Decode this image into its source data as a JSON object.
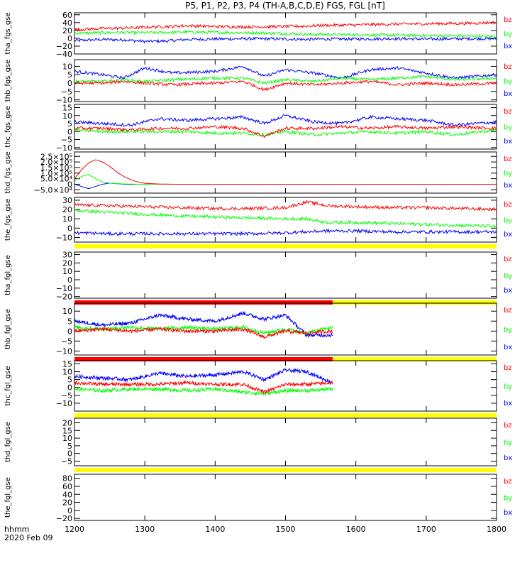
{
  "title": "P5, P1, P2, P3, P4 (TH-A,B,C,D,E) FGS, FGL [nT]",
  "footer": {
    "axis_units": "hhmm",
    "date": "2020 Feb 09"
  },
  "colors": {
    "bx": "#0000ff",
    "by": "#00ff00",
    "bz": "#ff0000",
    "bar_red": "#ff0000",
    "bar_yellow": "#ffff00"
  },
  "chart_data": {
    "type": "line",
    "x_axis": {
      "xlim": [
        1200,
        1800
      ],
      "tick_labels": [
        "1200",
        "1300",
        "1400",
        "1500",
        "1600",
        "1700",
        "1800"
      ]
    },
    "panels": [
      {
        "id": "tha_fgs",
        "ylabel": "tha_fgs_gse",
        "ylim": [
          -40,
          65
        ],
        "y_ticks": [
          -40,
          -20,
          0,
          20,
          40,
          60
        ],
        "y_tick_labels": [
          "−40",
          "−20",
          "0",
          "20",
          "40",
          "60"
        ],
        "data_x_end": 1800,
        "bars": [],
        "series": [
          {
            "name": "bz",
            "x": [
              1200,
              1240,
              1270,
              1300,
              1330,
              1360,
              1400,
              1450,
              1500,
              1530,
              1550,
              1600,
              1650,
              1700,
              1750,
              1800
            ],
            "y": [
              22,
              25,
              26,
              28,
              30,
              32,
              30,
              29,
              30,
              31,
              33,
              34,
              36,
              37,
              38,
              40
            ]
          },
          {
            "name": "by",
            "x": [
              1200,
              1240,
              1270,
              1300,
              1330,
              1360,
              1400,
              1450,
              1500,
              1530,
              1550,
              1600,
              1650,
              1700,
              1750,
              1800
            ],
            "y": [
              13,
              14,
              15,
              14,
              15,
              16,
              15,
              14,
              12,
              10,
              10,
              9,
              8,
              7,
              6,
              5
            ]
          },
          {
            "name": "bx",
            "x": [
              1200,
              1240,
              1270,
              1300,
              1330,
              1360,
              1400,
              1450,
              1500,
              1530,
              1550,
              1600,
              1650,
              1700,
              1750,
              1800
            ],
            "y": [
              -6,
              -3,
              -4,
              -8,
              -7,
              -3,
              -2,
              -1,
              -2,
              -3,
              -2,
              -2,
              -1,
              -2,
              -1,
              -1
            ]
          }
        ]
      },
      {
        "id": "thb_fgs",
        "ylabel": "thb_fgs_gse",
        "ylim": [
          -11,
          14
        ],
        "y_ticks": [
          -10,
          -5,
          0,
          5,
          10
        ],
        "y_tick_labels": [
          "−10",
          "−5",
          "0",
          "5",
          "10"
        ],
        "data_x_end": 1800,
        "bars": [],
        "series": [
          {
            "name": "bz",
            "x": [
              1200,
              1240,
              1270,
              1300,
              1340,
              1400,
              1440,
              1470,
              1500,
              1540,
              1580,
              1620,
              1660,
              1700,
              1740,
              1800
            ],
            "y": [
              0,
              0,
              1,
              0,
              -1,
              0,
              1,
              -4,
              0,
              -1,
              0,
              1,
              -1,
              0,
              -1,
              0
            ]
          },
          {
            "name": "by",
            "x": [
              1200,
              1240,
              1270,
              1300,
              1340,
              1400,
              1440,
              1470,
              1500,
              1540,
              1580,
              1620,
              1660,
              1700,
              1740,
              1800
            ],
            "y": [
              1,
              1,
              2,
              1,
              2,
              3,
              3,
              0,
              2,
              1,
              3,
              2,
              3,
              4,
              2,
              3
            ]
          },
          {
            "name": "bx",
            "x": [
              1200,
              1240,
              1270,
              1300,
              1340,
              1400,
              1440,
              1470,
              1500,
              1540,
              1580,
              1620,
              1660,
              1700,
              1740,
              1800
            ],
            "y": [
              7,
              5,
              3,
              9,
              6,
              7,
              10,
              4,
              8,
              6,
              3,
              8,
              9,
              6,
              3,
              5
            ]
          }
        ]
      },
      {
        "id": "thc_fgs",
        "ylabel": "thc_fgs_gse",
        "ylim": [
          -11,
          17
        ],
        "y_ticks": [
          -10,
          -5,
          0,
          5,
          10,
          15
        ],
        "y_tick_labels": [
          "−10",
          "−5",
          "0",
          "5",
          "10",
          "15"
        ],
        "data_x_end": 1800,
        "bars": [],
        "series": [
          {
            "name": "bz",
            "x": [
              1200,
              1240,
              1280,
              1320,
              1360,
              1400,
              1440,
              1470,
              1500,
              1540,
              1580,
              1620,
              1660,
              1700,
              1740,
              1800
            ],
            "y": [
              2,
              2,
              1,
              2,
              2,
              3,
              2,
              -3,
              2,
              2,
              3,
              2,
              3,
              2,
              3,
              2
            ]
          },
          {
            "name": "by",
            "x": [
              1200,
              1240,
              1280,
              1320,
              1360,
              1400,
              1440,
              1470,
              1500,
              1540,
              1580,
              1620,
              1660,
              1700,
              1740,
              1800
            ],
            "y": [
              1,
              0,
              0,
              0,
              0,
              -1,
              -1,
              -2,
              0,
              -2,
              -1,
              0,
              -1,
              0,
              -2,
              1
            ]
          },
          {
            "name": "bx",
            "x": [
              1200,
              1240,
              1280,
              1320,
              1360,
              1400,
              1440,
              1470,
              1500,
              1540,
              1580,
              1620,
              1660,
              1700,
              1740,
              1800
            ],
            "y": [
              6,
              5,
              4,
              8,
              7,
              8,
              9,
              5,
              10,
              6,
              5,
              9,
              8,
              7,
              4,
              6
            ]
          }
        ]
      },
      {
        "id": "thd_fgs",
        "ylabel": "thd_fgs_gse",
        "ylim": [
          -80000,
          290000
        ],
        "y_ticks": [
          -50000,
          0,
          50000,
          100000,
          150000,
          200000,
          250000
        ],
        "y_tick_labels": [
          "−5.0×10⁴",
          "0",
          "5.0×10⁴",
          "1.0×10⁵",
          "1.5×10⁵",
          "2.0×10⁵",
          "2.5×10⁵"
        ],
        "data_x_end": 1800,
        "bars": [],
        "series": [
          {
            "name": "bz",
            "x": [
              1200,
              1210,
              1220,
              1230,
              1240,
              1250,
              1260,
              1270,
              1280,
              1290,
              1300,
              1320,
              1340,
              1800
            ],
            "y": [
              50000,
              130000,
              190000,
              220000,
              200000,
              160000,
              110000,
              70000,
              40000,
              20000,
              8000,
              2000,
              0,
              0
            ]
          },
          {
            "name": "by",
            "x": [
              1200,
              1210,
              1220,
              1230,
              1240,
              1250,
              1260,
              1270,
              1280,
              1290,
              1300,
              1320,
              1340,
              1800
            ],
            "y": [
              30000,
              70000,
              90000,
              50000,
              20000,
              10000,
              5000,
              3000,
              1000,
              0,
              0,
              0,
              0,
              0
            ]
          },
          {
            "name": "bx",
            "x": [
              1200,
              1210,
              1220,
              1230,
              1240,
              1250,
              1260,
              1270,
              1280,
              1290,
              1300,
              1320,
              1340,
              1800
            ],
            "y": [
              0,
              -20000,
              -40000,
              -20000,
              0,
              10000,
              5000,
              0,
              -3000,
              0,
              0,
              0,
              0,
              0
            ]
          }
        ]
      },
      {
        "id": "the_fgs",
        "ylabel": "the_fgs_gse",
        "ylim": [
          -15,
          33
        ],
        "y_ticks": [
          -10,
          0,
          10,
          20,
          30
        ],
        "y_tick_labels": [
          "−10",
          "0",
          "10",
          "20",
          "30"
        ],
        "data_x_end": 1800,
        "bars": [
          {
            "x0": 1200,
            "x1": 1800,
            "color": "bar_yellow"
          }
        ],
        "series": [
          {
            "name": "bz",
            "x": [
              1200,
              1250,
              1300,
              1350,
              1400,
              1450,
              1500,
              1530,
              1560,
              1600,
              1650,
              1700,
              1750,
              1800
            ],
            "y": [
              25,
              24,
              23,
              22,
              21,
              21,
              22,
              28,
              24,
              23,
              22,
              22,
              21,
              20
            ]
          },
          {
            "name": "by",
            "x": [
              1200,
              1250,
              1300,
              1350,
              1400,
              1450,
              1500,
              1530,
              1560,
              1600,
              1650,
              1700,
              1750,
              1800
            ],
            "y": [
              19,
              17,
              15,
              13,
              12,
              11,
              10,
              10,
              6,
              6,
              5,
              4,
              3,
              2
            ]
          },
          {
            "name": "bx",
            "x": [
              1200,
              1250,
              1300,
              1350,
              1400,
              1450,
              1500,
              1530,
              1560,
              1600,
              1650,
              1700,
              1750,
              1800
            ],
            "y": [
              -5,
              -6,
              -6,
              -6,
              -6,
              -6,
              -5,
              -4,
              -3,
              -3,
              -4,
              -4,
              -4,
              -4
            ]
          }
        ]
      },
      {
        "id": "tha_fgl",
        "ylabel": "tha_fgl_gse",
        "ylim": [
          -22,
          33
        ],
        "y_ticks": [
          -20,
          -10,
          0,
          10,
          20,
          30
        ],
        "y_tick_labels": [
          "−20",
          "−10",
          "0",
          "10",
          "20",
          "30"
        ],
        "data_x_end": 1200,
        "bars": [
          {
            "x0": 1200,
            "x1": 1567,
            "color": "bar_red"
          },
          {
            "x0": 1567,
            "x1": 1800,
            "color": "bar_yellow"
          }
        ],
        "series": []
      },
      {
        "id": "thb_fgl",
        "ylabel": "thb_fgl_gse",
        "ylim": [
          -12,
          14
        ],
        "y_ticks": [
          -10,
          -5,
          0,
          5,
          10
        ],
        "y_tick_labels": [
          "−10",
          "−5",
          "0",
          "5",
          "10"
        ],
        "data_x_end": 1567,
        "bars": [
          {
            "x0": 1200,
            "x1": 1567,
            "color": "bar_red"
          },
          {
            "x0": 1567,
            "x1": 1800,
            "color": "bar_yellow"
          }
        ],
        "series": [
          {
            "name": "bz",
            "x": [
              1200,
              1240,
              1280,
              1320,
              1360,
              1400,
              1440,
              1470,
              1500,
              1530,
              1567
            ],
            "y": [
              0,
              1,
              0,
              1,
              0,
              0,
              1,
              -3,
              0,
              -1,
              0
            ]
          },
          {
            "name": "by",
            "x": [
              1200,
              1240,
              1280,
              1320,
              1360,
              1400,
              1440,
              1470,
              1500,
              1530,
              1567
            ],
            "y": [
              2,
              1,
              2,
              1,
              2,
              1,
              2,
              -1,
              1,
              -1,
              2
            ]
          },
          {
            "name": "bx",
            "x": [
              1200,
              1240,
              1280,
              1320,
              1360,
              1400,
              1440,
              1470,
              1500,
              1530,
              1567
            ],
            "y": [
              5,
              3,
              4,
              8,
              6,
              5,
              9,
              6,
              8,
              -2,
              -2
            ]
          }
        ]
      },
      {
        "id": "thc_fgl",
        "ylabel": "thc_fgl_gse",
        "ylim": [
          -15,
          17
        ],
        "y_ticks": [
          -10,
          -5,
          0,
          5,
          10,
          15
        ],
        "y_tick_labels": [
          "−10",
          "−5",
          "0",
          "5",
          "10",
          "15"
        ],
        "data_x_end": 1567,
        "bars": [
          {
            "x0": 1200,
            "x1": 1800,
            "color": "bar_yellow"
          }
        ],
        "series": [
          {
            "name": "bz",
            "x": [
              1200,
              1240,
              1280,
              1320,
              1360,
              1400,
              1440,
              1470,
              1500,
              1530,
              1567
            ],
            "y": [
              3,
              2,
              2,
              2,
              3,
              2,
              2,
              -3,
              2,
              2,
              3
            ]
          },
          {
            "name": "by",
            "x": [
              1200,
              1240,
              1280,
              1320,
              1360,
              1400,
              1440,
              1470,
              1500,
              1530,
              1567
            ],
            "y": [
              -1,
              -2,
              -1,
              -1,
              -2,
              -1,
              -3,
              -4,
              -2,
              -2,
              -1
            ]
          },
          {
            "name": "bx",
            "x": [
              1200,
              1240,
              1280,
              1320,
              1360,
              1400,
              1440,
              1470,
              1500,
              1530,
              1567
            ],
            "y": [
              7,
              6,
              5,
              9,
              7,
              8,
              10,
              5,
              11,
              10,
              3
            ]
          }
        ]
      },
      {
        "id": "thd_fgl",
        "ylabel": "thd_fgl_gse",
        "ylim": [
          -8,
          23
        ],
        "y_ticks": [
          -5,
          0,
          5,
          10,
          15,
          20
        ],
        "y_tick_labels": [
          "−5",
          "0",
          "5",
          "10",
          "15",
          "20"
        ],
        "data_x_end": 1200,
        "bars": [
          {
            "x0": 1200,
            "x1": 1800,
            "color": "bar_yellow"
          }
        ],
        "series": []
      },
      {
        "id": "the_fgl",
        "ylabel": "the_fgl_gse",
        "ylim": [
          -25,
          90
        ],
        "y_ticks": [
          -20,
          0,
          20,
          40,
          60,
          80
        ],
        "y_tick_labels": [
          "−20",
          "0",
          "20",
          "40",
          "60",
          "80"
        ],
        "data_x_end": 1200,
        "bars": [],
        "series": []
      }
    ],
    "legend_labels": [
      "bz",
      "by",
      "bx"
    ]
  }
}
